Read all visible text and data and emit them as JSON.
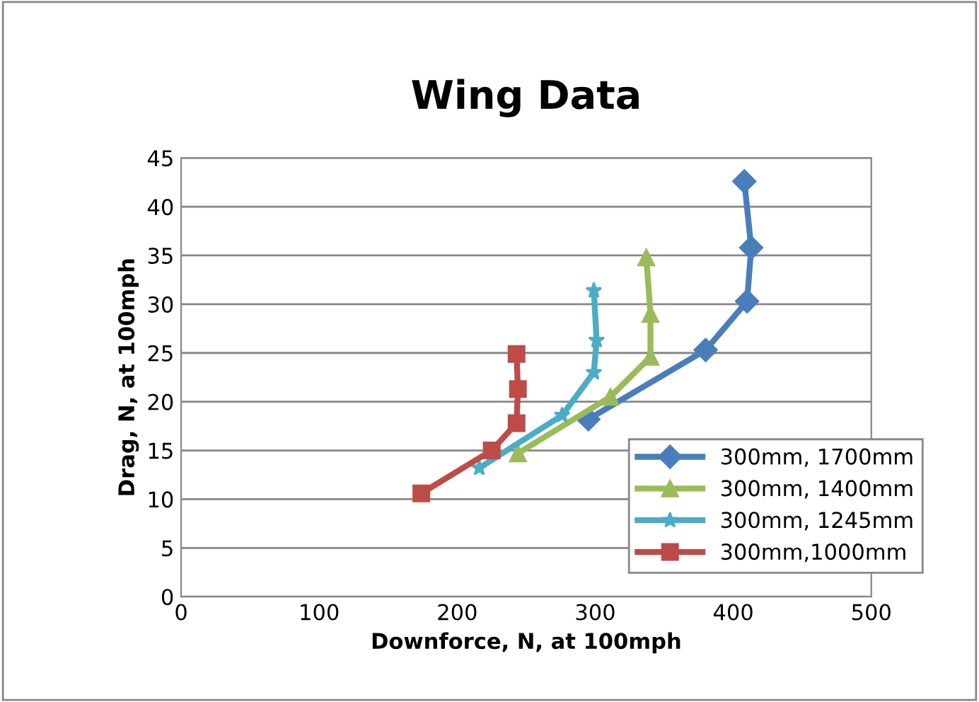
{
  "chart_data": {
    "type": "line",
    "title": "Wing Data",
    "xlabel": "Downforce, N, at 100mph",
    "ylabel": "Drag, N, at 100mph",
    "xlim": [
      0,
      500
    ],
    "xticks": [
      0,
      100,
      200,
      300,
      400,
      500
    ],
    "ylim": [
      0,
      45
    ],
    "yticks": [
      0,
      5,
      10,
      15,
      20,
      25,
      30,
      35,
      40,
      45
    ],
    "grid": "y",
    "legend": "bottom right",
    "series": [
      {
        "name": "300mm, 1700mm",
        "color": "#4a7ebb",
        "marker": "diamond",
        "x": [
          408,
          413,
          410,
          380,
          295
        ],
        "values": [
          42.6,
          35.8,
          30.3,
          25.3,
          18.2
        ]
      },
      {
        "name": "300mm, 1400mm",
        "color": "#9bbb59",
        "marker": "triangle",
        "x": [
          337,
          340,
          340,
          311,
          244
        ],
        "values": [
          34.8,
          29.0,
          24.6,
          20.5,
          14.7
        ]
      },
      {
        "name": "300mm, 1245mm",
        "color": "#4bacc6",
        "marker": "star",
        "x": [
          299,
          301,
          299,
          276,
          216
        ],
        "values": [
          31.4,
          26.3,
          23.0,
          18.6,
          13.2
        ]
      },
      {
        "name": "300mm,1000mm",
        "color": "#be4b48",
        "marker": "square",
        "x": [
          243,
          244,
          243,
          225,
          174
        ],
        "values": [
          24.9,
          21.3,
          17.8,
          15.0,
          10.6
        ]
      }
    ]
  }
}
